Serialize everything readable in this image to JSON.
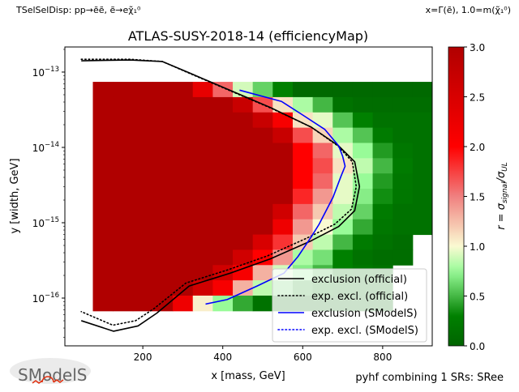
{
  "header": {
    "topology": "TSelSelDisp: pp→ẽẽ, ẽ→eχ̃₁⁰",
    "axes_info": "x=Γ(ẽ), 1.0=m(χ̃₁⁰)"
  },
  "footer": {
    "combination": "pyhf combining 1 SRs: SRee",
    "logo_text": "SModelS"
  },
  "chart_data": {
    "type": "heatmap",
    "title": "ATLAS-SUSY-2018-14 (efficiencyMap)",
    "xlabel": "x [mass, GeV]",
    "ylabel": "y [width, GeV]",
    "xlim": [
      5,
      924
    ],
    "ylim_log10": [
      -16.634,
      -12.667
    ],
    "yscale": "log",
    "xticks": [
      200,
      400,
      600,
      800
    ],
    "xtick_labels": [
      "200",
      "400",
      "600",
      "800"
    ],
    "yticks_log10": [
      -13,
      -14,
      -15,
      -16
    ],
    "ytick_labels": [
      {
        "base": "10",
        "exp": "−13"
      },
      {
        "base": "10",
        "exp": "−14"
      },
      {
        "base": "10",
        "exp": "−15"
      },
      {
        "base": "10",
        "exp": "−16"
      }
    ],
    "grid": false,
    "x_centers": [
      100,
      150,
      200,
      250,
      300,
      350,
      400,
      450,
      500,
      550,
      600,
      650,
      700,
      750,
      800,
      850,
      900
    ],
    "x_cell_width": 50,
    "y_log10_top": -13.13,
    "y_log10_bottom": -16.17,
    "r_values_top_to_bottom": [
      [
        3,
        3,
        3,
        3,
        3,
        2.3,
        1.6,
        0.9,
        0.6,
        0.3,
        0.05,
        0.05,
        0.05,
        0.05,
        0.05,
        0.05,
        0.05
      ],
      [
        3,
        3,
        3,
        3,
        3,
        3,
        3,
        2.7,
        1.7,
        1.1,
        0.8,
        0.5,
        0.15,
        0.1,
        0.1,
        0.1,
        0.1
      ],
      [
        3,
        3,
        3,
        3,
        3,
        3,
        3,
        3,
        2.7,
        2.1,
        1.1,
        0.95,
        0.55,
        0.3,
        0.15,
        0.15,
        0.15
      ],
      [
        3,
        3,
        3,
        3,
        3,
        3,
        3,
        3,
        3,
        2.7,
        1.7,
        1.15,
        0.8,
        0.55,
        0.25,
        0.15,
        0.15
      ],
      [
        3,
        3,
        3,
        3,
        3,
        3,
        3,
        3,
        3,
        3,
        2.0,
        1.6,
        0.95,
        0.75,
        0.4,
        0.2,
        0.15
      ],
      [
        3,
        3,
        3,
        3,
        3,
        3,
        3,
        3,
        3,
        3,
        2.0,
        1.7,
        1.1,
        0.85,
        0.5,
        0.25,
        0.15
      ],
      [
        3,
        3,
        3,
        3,
        3,
        3,
        3,
        3,
        3,
        3,
        2.0,
        1.6,
        0.95,
        0.75,
        0.4,
        0.2,
        0.15
      ],
      [
        3,
        3,
        3,
        3,
        3,
        3,
        3,
        3,
        3,
        3,
        1.85,
        1.4,
        0.95,
        0.7,
        0.35,
        0.2,
        0.15
      ],
      [
        3,
        3,
        3,
        3,
        3,
        3,
        3,
        3,
        3,
        2.6,
        1.6,
        1.2,
        0.85,
        0.6,
        0.25,
        0.15,
        0.15
      ],
      [
        3,
        3,
        3,
        3,
        3,
        3,
        3,
        3,
        3,
        2.2,
        1.4,
        1.0,
        0.75,
        0.45,
        0.2,
        0.15,
        0.15
      ],
      [
        3,
        3,
        3,
        3,
        3,
        3,
        3,
        3,
        2.5,
        1.8,
        1.2,
        0.85,
        0.5,
        0.25,
        0.15,
        0.1,
        null
      ],
      [
        3,
        3,
        3,
        3,
        3,
        3,
        3,
        2.6,
        2.0,
        1.4,
        0.8,
        0.65,
        0.3,
        0.15,
        0.1,
        0.1,
        null
      ],
      [
        3,
        3,
        3,
        3,
        3,
        3,
        2.6,
        2.1,
        1.3,
        0.9,
        0.7,
        0.5,
        0.3,
        0.2,
        0.15,
        null,
        null
      ],
      [
        3,
        3,
        3,
        3,
        3,
        2.6,
        2.1,
        1.3,
        0.85,
        0.6,
        0.4,
        0.3,
        0.2,
        0.15,
        0.15,
        null,
        null
      ],
      [
        3,
        3,
        3,
        3,
        2.2,
        1.05,
        0.75,
        0.45,
        0.15,
        0.1,
        0.1,
        0.1,
        0.1,
        0.1,
        0.1,
        null,
        null
      ]
    ],
    "colorbar": {
      "range": [
        0,
        3
      ],
      "ticks": [
        "0.0",
        "0.5",
        "1.0",
        "1.5",
        "2.0",
        "2.5",
        "3.0"
      ],
      "label_main": "r = σ",
      "label_sub1": "signal",
      "label_mid": "/σ",
      "label_sub2": "UL",
      "stops": [
        [
          0,
          "#006400"
        ],
        [
          0.3,
          "#008000"
        ],
        [
          0.75,
          "#98fb98"
        ],
        [
          1.0,
          "#fafad2"
        ],
        [
          1.5,
          "#f08080"
        ],
        [
          2.0,
          "#ff0000"
        ],
        [
          3.0,
          "#b00000"
        ]
      ]
    },
    "series": [
      {
        "name": "exclusion (official)",
        "color": "#000000",
        "style": "solid",
        "x": [
          46,
          168,
          249,
          316,
          426,
          519,
          621,
          690,
          730,
          742,
          730,
          690,
          621,
          519,
          418,
          316,
          235,
          188,
          127,
          46
        ],
        "y_log10": [
          -12.85,
          -12.84,
          -12.86,
          -13.01,
          -13.26,
          -13.47,
          -13.73,
          -13.98,
          -14.19,
          -14.52,
          -14.84,
          -15.05,
          -15.24,
          -15.48,
          -15.67,
          -15.84,
          -16.2,
          -16.37,
          -16.44,
          -16.3
        ]
      },
      {
        "name": "exp. excl. (official)",
        "color": "#000000",
        "style": "dotted",
        "x": [
          46,
          168,
          249,
          318,
          428,
          521,
          621,
          688,
          724,
          734,
          722,
          680,
          612,
          512,
          410,
          308,
          228,
          182,
          125,
          46
        ],
        "y_log10": [
          -12.83,
          -12.83,
          -12.86,
          -13.02,
          -13.27,
          -13.48,
          -13.73,
          -13.98,
          -14.19,
          -14.52,
          -14.82,
          -15.02,
          -15.2,
          -15.44,
          -15.63,
          -15.8,
          -16.14,
          -16.3,
          -16.36,
          -16.18
        ]
      },
      {
        "name": "exclusion (SModelS)",
        "color": "#0000ff",
        "style": "solid",
        "x": [
          442,
          547,
          600,
          655,
          690,
          700,
          706,
          696,
          676,
          641,
          621,
          588,
          553,
          486,
          411,
          357
        ],
        "y_log10": [
          -13.24,
          -13.39,
          -13.57,
          -13.76,
          -13.98,
          -14.12,
          -14.25,
          -14.38,
          -14.66,
          -15.02,
          -15.19,
          -15.45,
          -15.67,
          -15.84,
          -16.02,
          -16.08
        ]
      },
      {
        "name": "exp. excl. (SModelS)",
        "color": "#0000ff",
        "style": "dotted",
        "x": [],
        "y_log10": []
      }
    ]
  }
}
